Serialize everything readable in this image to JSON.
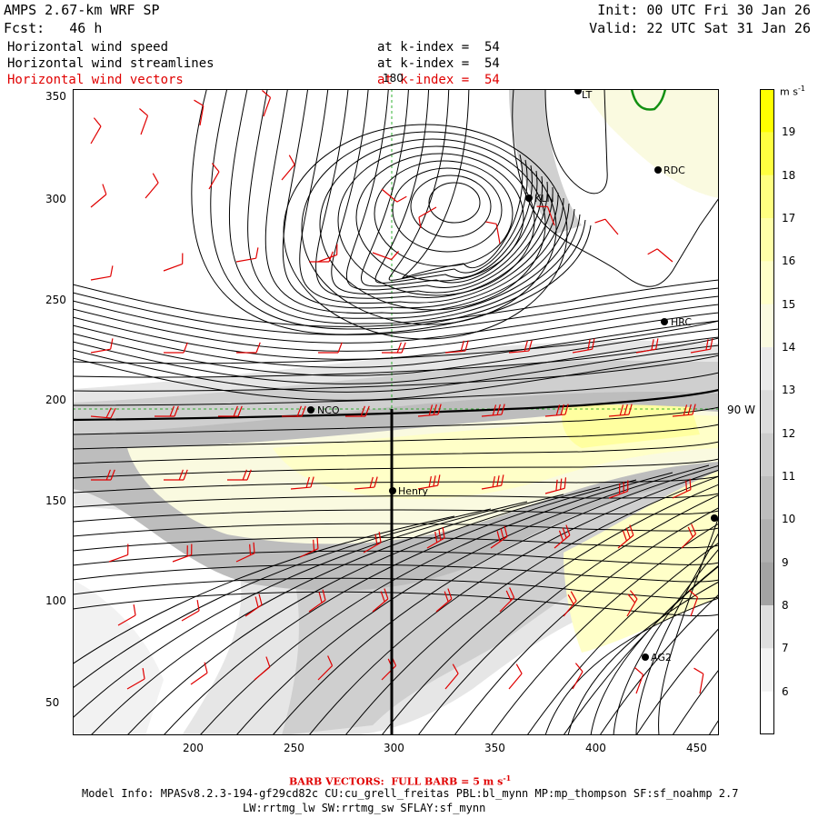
{
  "header": {
    "model": "AMPS 2.67-km WRF SP",
    "forecast": "Fcst:   46 h",
    "init": "Init: 00 UTC Fri 30 Jan 26",
    "valid": "Valid: 22 UTC Sat 31 Jan 26",
    "fields": [
      {
        "name": "Horizontal wind speed",
        "level": "at k-index =  54",
        "color": "#000000"
      },
      {
        "name": "Horizontal wind streamlines",
        "level": "at k-index =  54",
        "color": "#000000"
      },
      {
        "name": "Horizontal wind vectors",
        "level": "at k-index =  54",
        "color": "#e00000"
      }
    ]
  },
  "map": {
    "x_ticks": [
      "200",
      "250",
      "300",
      "350",
      "400",
      "450"
    ],
    "y_ticks": [
      "350",
      "300",
      "250",
      "200",
      "150",
      "100",
      "50"
    ],
    "meridian_label": "180",
    "parallel_label": "90 W",
    "stations": [
      {
        "name": "NCO"
      },
      {
        "name": "Henry"
      },
      {
        "name": "HRC"
      },
      {
        "name": "RDC"
      },
      {
        "name": "KLN"
      },
      {
        "name": "AG2"
      },
      {
        "name": ""
      },
      {
        "name": "LT"
      }
    ]
  },
  "colorbar": {
    "unit": "m s",
    "unit_exp": "-1",
    "labels": [
      "19",
      "18",
      "17",
      "16",
      "15",
      "14",
      "13",
      "12",
      "11",
      "10",
      "9",
      "8",
      "7",
      "6"
    ],
    "colors": [
      "#ffff00",
      "#ffff40",
      "#ffff80",
      "#ffffa8",
      "#ffffc8",
      "#fafae0",
      "#eaeaea",
      "#dcdcdc",
      "#cdcdcd",
      "#bebebe",
      "#b0b0b0",
      "#a3a3a3",
      "#dedede",
      "#f2f2f2",
      "#ffffff"
    ]
  },
  "footer": {
    "barb_text": "BARB VECTORS:  FULL BARB = 5 m s",
    "barb_exp": "-1",
    "model_info": "Model Info: MPASv8.2.3-194-gf29cd82c CU:cu_grell_freitas PBL:bl_mynn MP:mp_thompson SF:sf_noahmp 2.7",
    "model_info2": "LW:rrtmg_lw SW:rrtmg_sw SFLAY:sf_mynn"
  }
}
